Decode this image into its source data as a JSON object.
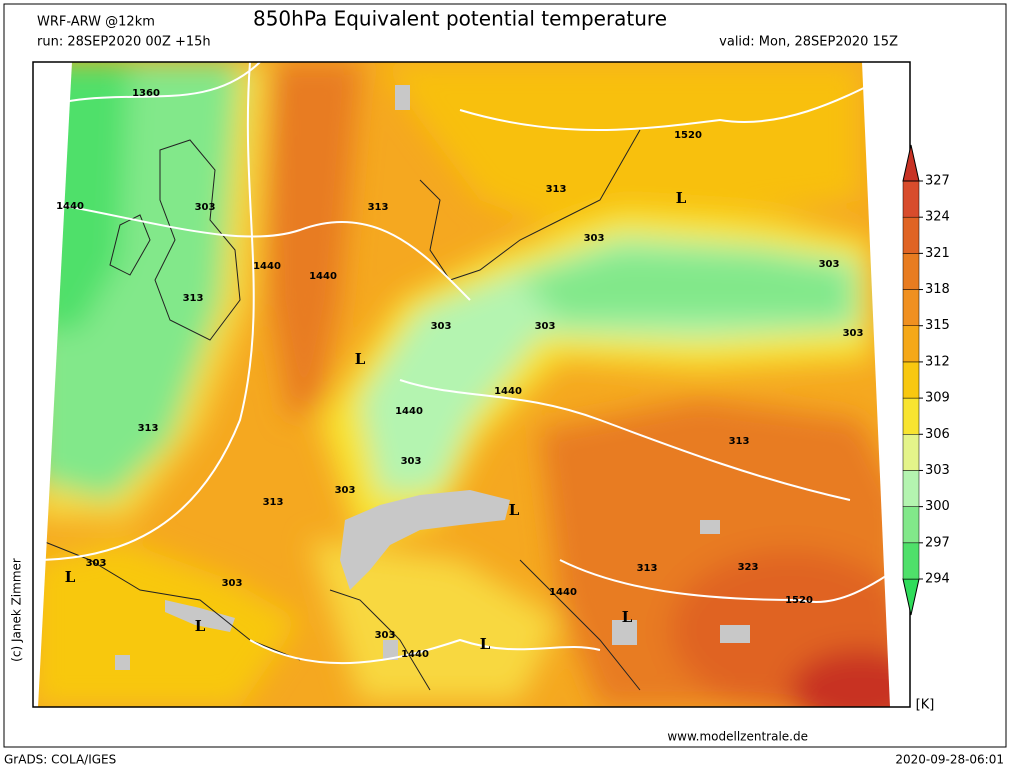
{
  "header": {
    "model": "WRF-ARW @12km",
    "title": "850hPa Equivalent potential temperature",
    "run": "run: 28SEP2020 00Z +15h",
    "valid": "valid: Mon, 28SEP2020 15Z"
  },
  "colorbar": {
    "ticks": [
      294,
      297,
      300,
      303,
      306,
      309,
      312,
      315,
      318,
      321,
      324,
      327
    ],
    "colors": [
      "#2fdc5a",
      "#4fe06a",
      "#82e88a",
      "#b4f4b0",
      "#e4f48a",
      "#f8e430",
      "#f8c810",
      "#f5a818",
      "#f09020",
      "#e87c20",
      "#e06424",
      "#d84c2c",
      "#c83224"
    ],
    "unit": "[K]"
  },
  "map_labels": [
    "1360",
    "1440",
    "303",
    "313",
    "1440",
    "1440",
    "313",
    "303",
    "303",
    "L",
    "1440",
    "1440",
    "303",
    "313",
    "303",
    "313",
    "L",
    "303",
    "L",
    "303",
    "L",
    "303",
    "1440",
    "L",
    "1440",
    "L",
    "313",
    "323",
    "1520",
    "313",
    "303",
    "303",
    "313",
    "303",
    "L",
    "1520"
  ],
  "footer": {
    "credit": "(c) Janek Zimmer",
    "website": "www.modellzentrale.de",
    "software": "GrADS: COLA/IGES",
    "timestamp": "2020-09-28-06:01"
  }
}
